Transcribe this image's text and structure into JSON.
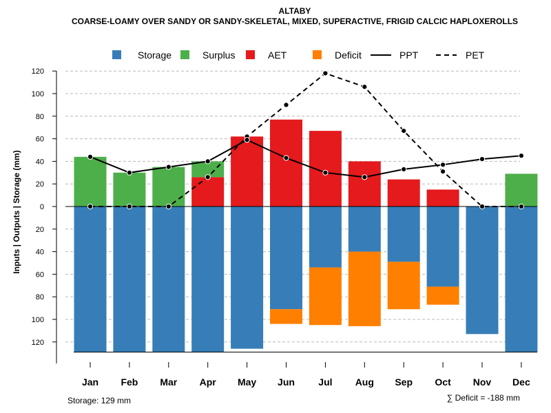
{
  "chart_data": {
    "type": "bar",
    "title": "ALTABY",
    "subtitle": "COARSE-LOAMY OVER SANDY OR SANDY-SKELETAL, MIXED, SUPERACTIVE, FRIGID CALCIC HAPLOXEROLLS",
    "ylabel": "Inputs | Outputs | Storage    (mm)",
    "ylim": [
      -130,
      125
    ],
    "yticks": [
      120,
      100,
      80,
      60,
      40,
      20,
      0,
      -20,
      -40,
      -60,
      -80,
      -100,
      -120
    ],
    "ytick_labels": [
      "120",
      "100",
      "80",
      "60",
      "40",
      "20",
      "0",
      "20",
      "40",
      "60",
      "80",
      "100",
      "120"
    ],
    "grid": true,
    "categories": [
      "Jan",
      "Feb",
      "Mar",
      "Apr",
      "May",
      "Jun",
      "Jul",
      "Aug",
      "Sep",
      "Oct",
      "Nov",
      "Dec"
    ],
    "legend": {
      "position": "top",
      "items": [
        {
          "label": "Storage",
          "kind": "square",
          "color": "#377EB8"
        },
        {
          "label": "Surplus",
          "kind": "square",
          "color": "#4DAF4A"
        },
        {
          "label": "AET",
          "kind": "square",
          "color": "#E41A1C"
        },
        {
          "label": "Deficit",
          "kind": "square",
          "color": "#FF7F00"
        },
        {
          "label": "PPT",
          "kind": "solid-line",
          "color": "#000000"
        },
        {
          "label": "PET",
          "kind": "dashed-line",
          "color": "#000000"
        }
      ]
    },
    "series": [
      {
        "name": "Storage",
        "color": "#377EB8",
        "direction": "down",
        "values": [
          129,
          129,
          129,
          129,
          126,
          91,
          54,
          40,
          49,
          71,
          113,
          129
        ]
      },
      {
        "name": "Deficit",
        "color": "#FF7F00",
        "direction": "down",
        "values": [
          0,
          0,
          0,
          0,
          0,
          13,
          51,
          66,
          42,
          16,
          0,
          0
        ]
      },
      {
        "name": "AET",
        "color": "#E41A1C",
        "direction": "up",
        "values": [
          0,
          0,
          0,
          26,
          62,
          77,
          67,
          40,
          24,
          15,
          0,
          0
        ]
      },
      {
        "name": "Surplus",
        "color": "#4DAF4A",
        "direction": "up",
        "values": [
          44,
          30,
          35,
          14,
          0,
          0,
          0,
          0,
          0,
          0,
          0,
          29
        ]
      },
      {
        "name": "PPT",
        "color": "#000000",
        "line": "solid",
        "values": [
          44,
          30,
          35,
          40,
          59,
          43,
          30,
          26,
          33,
          37,
          42,
          45
        ]
      },
      {
        "name": "PET",
        "color": "#000000",
        "line": "dashed",
        "values": [
          0,
          0,
          0,
          26,
          62,
          90,
          118,
          106,
          67,
          31,
          0,
          0
        ]
      }
    ],
    "annotations": {
      "storage": "Storage: 129 mm",
      "deficit": "∑ Deficit = -188 mm"
    }
  }
}
